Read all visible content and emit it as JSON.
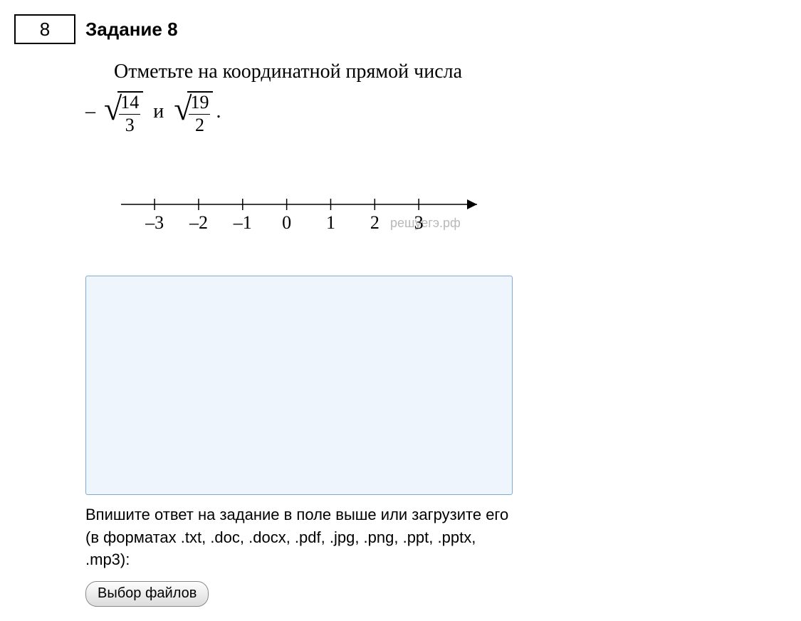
{
  "header": {
    "number": "8",
    "title": "Задание 8"
  },
  "problem": {
    "prompt": "Отметьте на координатной прямой числа",
    "minus": "–",
    "sqrt1_num": "14",
    "sqrt1_den": "3",
    "conj": "и",
    "sqrt2_num": "19",
    "sqrt2_den": "2",
    "period": "."
  },
  "numberline": {
    "xmin": -3.6,
    "xmax": 4.0,
    "ticks": [
      -3,
      -2,
      -1,
      0,
      1,
      2,
      3
    ],
    "tick_labels": [
      "–3",
      "–2",
      "–1",
      "0",
      "1",
      "2",
      "3"
    ],
    "axis_color": "#000000",
    "watermark": "решуегэ.рф"
  },
  "answer_area": {
    "hint": "Впишите ответ на задание в поле выше или загрузите его (в форматах .txt, .doc, .docx, .pdf, .jpg, .png, .ppt, .pptx, .mp3):",
    "file_button_label": "Выбор файлов"
  }
}
